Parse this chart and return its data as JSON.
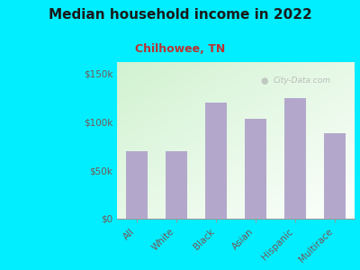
{
  "title": "Median household income in 2022",
  "subtitle": "Chilhowee, TN",
  "categories": [
    "All",
    "White",
    "Black",
    "Asian",
    "Hispanic",
    "Multirace"
  ],
  "values": [
    70000,
    70000,
    120000,
    103000,
    125000,
    88000
  ],
  "bar_color": "#b3a8cc",
  "background_outer": "#00eeff",
  "background_inner_left": "#d0ecd0",
  "background_inner_right": "#f0faf0",
  "title_color": "#1a1a1a",
  "subtitle_color": "#bb3333",
  "tick_label_color": "#775555",
  "ytick_labels": [
    "$0",
    "$50k",
    "$100k",
    "$150k"
  ],
  "ytick_values": [
    0,
    50000,
    100000,
    150000
  ],
  "ylim": [
    0,
    162000
  ],
  "watermark": "City-Data.com",
  "title_fontsize": 11,
  "subtitle_fontsize": 9,
  "tick_fontsize": 7.5
}
